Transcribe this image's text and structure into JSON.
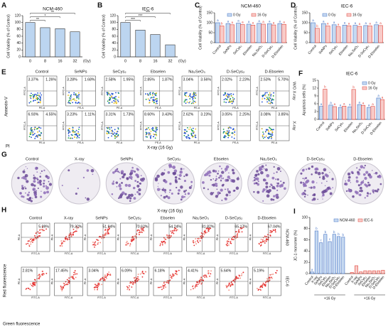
{
  "chart_data": [
    {
      "panel": "A",
      "type": "bar",
      "title": "NCM-460",
      "categories": [
        "0",
        "8",
        "16",
        "32"
      ],
      "x_unit": "(Gy)",
      "ylabel": "Cell Viability (% of Control)",
      "values": [
        100,
        85,
        82,
        73
      ],
      "color": "#bcd5f0",
      "edgecolor": "#333333",
      "ylim": [
        0,
        120
      ],
      "yticks": [
        0,
        20,
        40,
        60,
        80,
        100,
        120
      ],
      "annotations": [
        "**",
        "*",
        "**"
      ]
    },
    {
      "panel": "B",
      "type": "bar",
      "title": "IEC-6",
      "categories": [
        "0",
        "8",
        "16",
        "32"
      ],
      "x_unit": "(Gy)",
      "ylabel": "Cell Viability (% of Control)",
      "values": [
        100,
        78,
        65,
        35
      ],
      "color": "#bcd5f0",
      "edgecolor": "#333333",
      "ylim": [
        0,
        120
      ],
      "yticks": [
        0,
        20,
        40,
        60,
        80,
        100,
        120
      ],
      "annotations": [
        "***",
        "***",
        "***"
      ]
    },
    {
      "panel": "C",
      "type": "grouped_bar",
      "title": "NCM-460",
      "ylabel": "Cell Viability (% of Control)",
      "categories": [
        "Control",
        "SeNPs",
        "SeCys₂",
        "Ebselen",
        "Na₂SeO₃",
        "D-SeCys₂",
        "D-Ebselen"
      ],
      "series": [
        {
          "name": "0 Gy",
          "color": "#c6d9f1",
          "edgecolor": "#4472c4",
          "values": [
            100,
            96,
            98,
            93,
            97,
            95,
            96
          ],
          "annotations": [
            "a",
            "a",
            "a",
            "a",
            "a",
            "a",
            "a"
          ]
        },
        {
          "name": "16 Gy",
          "color": "#f8cbc8",
          "edgecolor": "#e0443a",
          "values": [
            84,
            90,
            91,
            88,
            93,
            89,
            92
          ],
          "annotations": [
            "b",
            "a",
            "a",
            "a",
            "a",
            "a",
            "a"
          ]
        }
      ],
      "ylim": [
        0,
        150
      ],
      "yticks": [
        0,
        50,
        100,
        150
      ]
    },
    {
      "panel": "D",
      "type": "grouped_bar",
      "title": "IEC-6",
      "ylabel": "Cell Viability (% of Control)",
      "categories": [
        "Control",
        "SeNPs",
        "SeCys₂",
        "Ebselen",
        "Na₂SeO₃",
        "D-SeCys₂",
        "D-Ebselen"
      ],
      "series": [
        {
          "name": "0 Gy",
          "color": "#c6d9f1",
          "edgecolor": "#4472c4",
          "values": [
            100,
            96,
            90,
            88,
            87,
            86,
            90
          ],
          "annotations": [
            "a",
            "a",
            "a",
            "a",
            "a",
            "a",
            "a"
          ]
        },
        {
          "name": "16 Gy",
          "color": "#f8cbc8",
          "edgecolor": "#e0443a",
          "values": [
            72,
            84,
            80,
            85,
            82,
            84,
            86
          ],
          "annotations": [
            "b",
            "a",
            "a",
            "a",
            "a",
            "a",
            "a"
          ]
        }
      ],
      "ylim": [
        0,
        150
      ],
      "yticks": [
        0,
        50,
        100,
        150
      ]
    },
    {
      "panel": "F",
      "type": "grouped_bar",
      "title": "IEC-6",
      "ylabel": "Apoptosis cells (%)",
      "categories": [
        "Control",
        "SeNPs",
        "SeCys₂",
        "Ebselen",
        "Na₂SeO₃",
        "D-SeCys₂",
        "D-Ebselen"
      ],
      "series": [
        {
          "name": "0 Gy",
          "color": "#c6d9f1",
          "edgecolor": "#4472c4",
          "values": [
            5.0,
            5.5,
            4.6,
            4.8,
            5.7,
            4.6,
            8.2
          ],
          "annotations": [
            "a",
            "a",
            "a",
            "a",
            "a",
            "a",
            "a"
          ]
        },
        {
          "name": "16 Gy",
          "color": "#f8cbc8",
          "edgecolor": "#e0443a",
          "values": [
            11.6,
            4.9,
            5.1,
            11.5,
            5.4,
            5.0,
            7.6
          ],
          "annotations": [
            "b",
            "a",
            "a",
            "b",
            "a",
            "a",
            "a"
          ]
        }
      ],
      "ylim": [
        0,
        15
      ],
      "yticks": [
        0,
        3,
        6,
        9,
        12,
        15
      ]
    },
    {
      "panel": "I",
      "type": "block_bar",
      "ylabel": "JC-1 monomer (%)",
      "group_label": "+16 Gy",
      "categories": [
        "Control",
        "X-ray",
        "SeNPs",
        "SeCys₂",
        "Ebselen",
        "Na₂SeO₃",
        "D-SeCys₂",
        "D-Ebselen"
      ],
      "series": [
        {
          "name": "NCM-460",
          "color": "#c6d9f1",
          "edgecolor": "#4472c4",
          "values": [
            3,
            76,
            55,
            70,
            57,
            70,
            66,
            65
          ],
          "annotations": [
            "a",
            "b",
            "c",
            "b",
            "c",
            "b",
            "b",
            "b"
          ]
        },
        {
          "name": "IEC-6",
          "color": "#f8cbc8",
          "edgecolor": "#e0443a",
          "values": [
            2,
            14,
            3,
            5,
            5,
            5,
            5,
            6
          ]
        }
      ],
      "ylim": [
        0,
        100
      ],
      "yticks": [
        0,
        20,
        40,
        60,
        80,
        100
      ]
    }
  ],
  "flow_e": {
    "panel": "E",
    "columns": [
      "Control",
      "SeNPs",
      "SeCys₂",
      "Ebselen",
      "Na₂SeO₃",
      "D-SeCys₂",
      "D-Ebselen"
    ],
    "row_labels": [
      "W/O X-ray",
      "X-ray"
    ],
    "y_label": "Annexin-V",
    "x_label": "PI",
    "plot_x": "PE-A",
    "plot_y": "FITC-A",
    "caption": "X-ray (16 Gy)",
    "quadrants": [
      [
        [
          "3.37%",
          "1.26%"
        ],
        [
          "3.28%",
          "1.68%"
        ],
        [
          "2.58%",
          "1.95%"
        ],
        [
          "2.85%",
          "1.87%"
        ],
        [
          "3.04%",
          "3.56%"
        ],
        [
          "2.02%",
          "2.23%"
        ],
        [
          "2.53%",
          "5.70%"
        ]
      ],
      [
        [
          "6.93%",
          "4.55%"
        ],
        [
          "3.23%",
          "1.11%"
        ],
        [
          "3.31%",
          "1.73%"
        ],
        [
          "8.60%",
          "3.43%"
        ],
        [
          "2.62%",
          "3.23%"
        ],
        [
          "3.05%",
          "2.25%"
        ],
        [
          "3.08%",
          "3.85%"
        ]
      ]
    ]
  },
  "colony_g": {
    "panel": "G",
    "columns": [
      "Control",
      "X-ray",
      "SeNPs",
      "SeCys₂",
      "Ebselen",
      "Na₂SeO₃",
      "D-SeCys₂",
      "D-Ebselen"
    ]
  },
  "flow_h": {
    "panel": "H",
    "title": "X-ray (16 Gy)",
    "columns": [
      "Control",
      "X-ray",
      "SeNPs",
      "SeCys₂",
      "Ebselen",
      "Na₂SeO₃",
      "D-SeCys₂",
      "D-Ebselen"
    ],
    "row_labels": [
      "NCM-460",
      "IEC-6"
    ],
    "y_label": "Red fluorescence",
    "x_label": "Green fluorescence",
    "plot_x": "FITC-A",
    "plot_y": "PE-A",
    "percentages": [
      [
        "5.09%",
        "79.32%",
        "51.94%",
        "70.62%",
        "54.24%",
        "81.82%",
        "65.17%",
        "67.04%"
      ],
      [
        "2.81%",
        "17.45%",
        "3.04%",
        "6.09%",
        "6.18%",
        "4.41%",
        "5.64%",
        "5.19%"
      ]
    ]
  }
}
